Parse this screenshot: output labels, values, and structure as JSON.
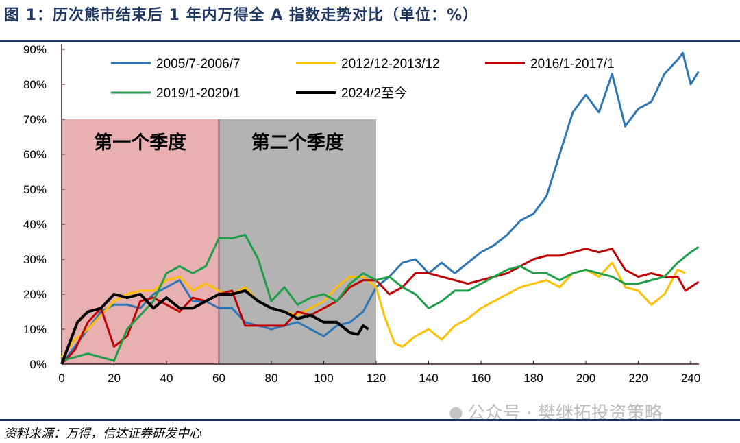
{
  "title": "图 1：历次熊市结束后 1 年内万得全 A 指数走势对比（单位：%）",
  "source": "资料来源：万得，信达证券研发中心",
  "watermark": "公众号 · 樊继拓投资策略",
  "chart_data": {
    "type": "line",
    "title": "",
    "xlabel": "",
    "ylabel": "",
    "xlim": [
      0,
      245
    ],
    "ylim": [
      0,
      90
    ],
    "xticks": [
      0,
      20,
      40,
      60,
      80,
      100,
      120,
      140,
      160,
      180,
      200,
      220,
      240
    ],
    "yticks": [
      0,
      10,
      20,
      30,
      40,
      50,
      60,
      70,
      80,
      90
    ],
    "ytick_labels": [
      "0%",
      "10%",
      "20%",
      "30%",
      "40%",
      "50%",
      "60%",
      "70%",
      "80%",
      "90%"
    ],
    "grid": false,
    "legend": "top",
    "regions": [
      {
        "label": "第一个季度",
        "x": [
          0,
          60
        ],
        "y": [
          0,
          70
        ],
        "color": "#e8b0b0"
      },
      {
        "label": "第二个季度",
        "x": [
          60,
          120
        ],
        "y": [
          0,
          70
        ],
        "color": "#b3b3b3"
      }
    ],
    "series": [
      {
        "name": "2005/7-2006/7",
        "color": "#2e75b6",
        "x": [
          0,
          5,
          10,
          15,
          20,
          25,
          30,
          35,
          40,
          45,
          50,
          55,
          60,
          65,
          70,
          75,
          80,
          85,
          90,
          95,
          100,
          105,
          110,
          115,
          120,
          125,
          130,
          135,
          140,
          145,
          150,
          155,
          160,
          165,
          170,
          175,
          180,
          185,
          190,
          195,
          200,
          205,
          210,
          215,
          220,
          225,
          230,
          235,
          237,
          240,
          243
        ],
        "y": [
          0,
          5,
          10,
          15,
          17,
          17,
          16,
          20,
          22,
          24,
          18,
          18,
          16,
          16,
          12,
          11,
          10,
          11,
          12,
          10,
          8,
          11,
          12,
          15,
          22,
          25,
          29,
          30,
          26,
          29,
          26,
          29,
          32,
          34,
          37,
          41,
          43,
          48,
          60,
          72,
          77,
          72,
          83,
          68,
          73,
          75,
          83,
          87,
          89,
          80,
          83.6
        ]
      },
      {
        "name": "2012/12-2013/12",
        "color": "#ffc000",
        "x": [
          0,
          5,
          10,
          15,
          20,
          25,
          30,
          35,
          40,
          45,
          50,
          55,
          60,
          65,
          70,
          75,
          80,
          85,
          90,
          95,
          100,
          105,
          110,
          115,
          120,
          123,
          127,
          130,
          135,
          140,
          145,
          150,
          155,
          160,
          165,
          170,
          175,
          180,
          185,
          190,
          195,
          200,
          205,
          210,
          215,
          220,
          225,
          230,
          235,
          238
        ],
        "y": [
          2,
          7,
          10,
          14,
          18,
          20,
          21,
          21,
          24,
          25,
          21,
          23,
          21,
          20,
          22,
          18,
          16,
          15,
          14,
          16,
          18,
          22,
          25,
          25,
          22,
          14,
          6,
          5,
          8,
          10,
          7,
          11,
          13,
          16,
          18,
          20,
          22,
          23,
          24,
          22,
          26,
          27,
          25,
          29,
          22,
          21,
          17,
          20,
          27,
          26
        ]
      },
      {
        "name": "2016/1-2017/1",
        "color": "#c00000",
        "x": [
          0,
          5,
          10,
          15,
          20,
          25,
          30,
          35,
          40,
          45,
          50,
          55,
          60,
          65,
          70,
          75,
          80,
          85,
          90,
          95,
          100,
          105,
          110,
          115,
          120,
          125,
          130,
          135,
          140,
          145,
          150,
          155,
          160,
          165,
          170,
          175,
          180,
          185,
          190,
          195,
          200,
          205,
          210,
          215,
          220,
          225,
          230,
          235,
          238,
          240,
          243
        ],
        "y": [
          0,
          4,
          12,
          16,
          5,
          8,
          18,
          19,
          17,
          15,
          19,
          18,
          20,
          21,
          11,
          11,
          11,
          11,
          15,
          14,
          16,
          18,
          22,
          24,
          24,
          20,
          22,
          26,
          26,
          25,
          24,
          23,
          24,
          25,
          26,
          28,
          30,
          31,
          31,
          32,
          33,
          32,
          33,
          27,
          25,
          26,
          25,
          25,
          21,
          22,
          23.5
        ]
      },
      {
        "name": "2019/1-2020/1",
        "color": "#1e9e48",
        "x": [
          0,
          5,
          10,
          15,
          20,
          25,
          30,
          35,
          40,
          45,
          50,
          55,
          60,
          65,
          70,
          75,
          80,
          85,
          90,
          95,
          100,
          105,
          110,
          115,
          120,
          125,
          130,
          135,
          140,
          145,
          150,
          155,
          160,
          165,
          170,
          175,
          180,
          185,
          190,
          195,
          200,
          205,
          210,
          215,
          220,
          225,
          230,
          235,
          240,
          243
        ],
        "y": [
          1,
          2,
          3,
          2,
          1,
          10,
          14,
          18,
          26,
          28,
          26,
          28,
          36,
          36,
          37,
          30,
          18,
          22,
          17,
          19,
          20,
          18,
          23,
          26,
          24,
          25,
          22,
          20,
          16,
          18,
          21,
          21,
          23,
          25,
          27,
          28,
          26,
          26,
          24,
          26,
          27,
          26,
          25,
          23,
          23,
          24,
          25,
          29,
          32,
          33.5
        ]
      },
      {
        "name": "2024/2至今",
        "color": "#000000",
        "x": [
          0,
          3,
          6,
          10,
          15,
          20,
          25,
          30,
          35,
          40,
          45,
          50,
          55,
          60,
          65,
          70,
          75,
          80,
          85,
          90,
          95,
          100,
          105,
          110,
          113,
          115,
          117
        ],
        "y": [
          0,
          6,
          12,
          15,
          16,
          20,
          19,
          20,
          16,
          19,
          16,
          16,
          18,
          20,
          20,
          21,
          18,
          16,
          15,
          13,
          14,
          12,
          12,
          9,
          8.5,
          11,
          10
        ]
      }
    ]
  }
}
